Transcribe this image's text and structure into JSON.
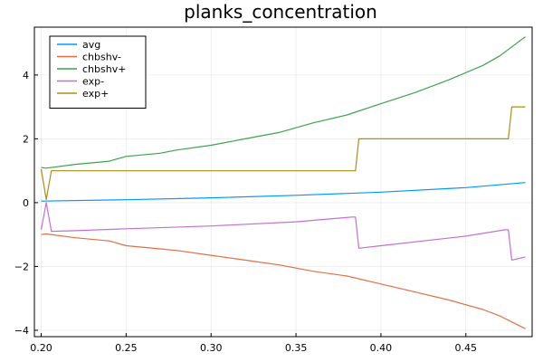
{
  "chart_data": {
    "type": "line",
    "title": "planks_concentration",
    "xlabel": "",
    "ylabel": "",
    "xlim": [
      0.196,
      0.489
    ],
    "ylim": [
      -4.2,
      5.5
    ],
    "grid": true,
    "legend_position": "top-left",
    "x_ticks": [
      0.2,
      0.25,
      0.3,
      0.35,
      0.4,
      0.45
    ],
    "x_tick_labels": [
      "0.20",
      "0.25",
      "0.30",
      "0.35",
      "0.40",
      "0.45"
    ],
    "y_ticks": [
      -4,
      -2,
      0,
      2,
      4
    ],
    "y_tick_labels": [
      "−4",
      "−2",
      "0",
      "2",
      "4"
    ],
    "series": [
      {
        "name": "avg",
        "color": "#009af9",
        "x": [
          0.2,
          0.25,
          0.3,
          0.35,
          0.4,
          0.45,
          0.485
        ],
        "y": [
          0.05,
          0.09,
          0.15,
          0.23,
          0.33,
          0.47,
          0.63
        ]
      },
      {
        "name": "chbshv-",
        "color": "#e26f46",
        "x": [
          0.2,
          0.203,
          0.22,
          0.24,
          0.25,
          0.27,
          0.28,
          0.3,
          0.32,
          0.34,
          0.36,
          0.38,
          0.4,
          0.42,
          0.44,
          0.46,
          0.47,
          0.485
        ],
        "y": [
          -1.0,
          -0.98,
          -1.1,
          -1.2,
          -1.35,
          -1.45,
          -1.5,
          -1.65,
          -1.8,
          -1.95,
          -2.15,
          -2.3,
          -2.55,
          -2.8,
          -3.05,
          -3.35,
          -3.55,
          -3.95
        ]
      },
      {
        "name": "chbshv+",
        "color": "#3da44d",
        "x": [
          0.2,
          0.203,
          0.22,
          0.24,
          0.25,
          0.27,
          0.28,
          0.3,
          0.32,
          0.34,
          0.36,
          0.38,
          0.4,
          0.42,
          0.44,
          0.46,
          0.47,
          0.485
        ],
        "y": [
          1.1,
          1.08,
          1.2,
          1.3,
          1.45,
          1.55,
          1.65,
          1.8,
          2.0,
          2.2,
          2.5,
          2.75,
          3.1,
          3.45,
          3.85,
          4.3,
          4.6,
          5.2
        ]
      },
      {
        "name": "exp-",
        "color": "#c271d2",
        "x": [
          0.2,
          0.203,
          0.206,
          0.22,
          0.25,
          0.3,
          0.35,
          0.383,
          0.385,
          0.387,
          0.4,
          0.45,
          0.473,
          0.475,
          0.477,
          0.485
        ],
        "y": [
          -0.85,
          0.0,
          -0.9,
          -0.88,
          -0.82,
          -0.73,
          -0.6,
          -0.45,
          -0.45,
          -1.43,
          -1.35,
          -1.05,
          -0.85,
          -0.85,
          -1.8,
          -1.7
        ]
      },
      {
        "name": "exp+",
        "color": "#ac8d18",
        "x": [
          0.2,
          0.203,
          0.206,
          0.385,
          0.387,
          0.475,
          0.477,
          0.485
        ],
        "y": [
          1.05,
          0.1,
          1.0,
          1.0,
          2.0,
          2.0,
          3.0,
          3.0
        ]
      }
    ]
  }
}
